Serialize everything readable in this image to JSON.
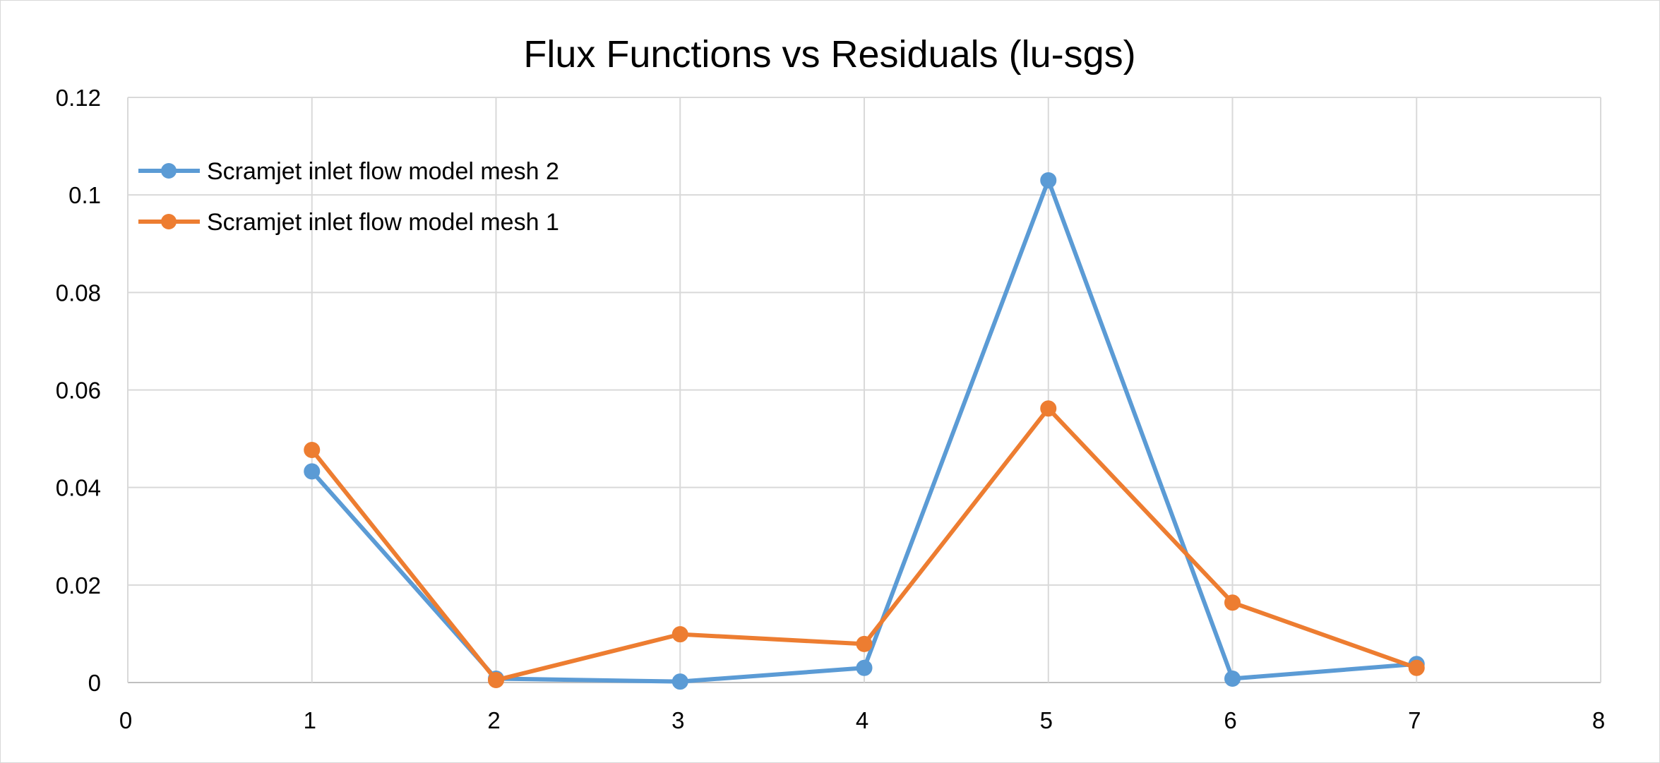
{
  "chart_data": {
    "type": "line",
    "title": "Flux Functions vs Residuals (lu-sgs)",
    "xlabel": "",
    "ylabel": "",
    "xlim": [
      0,
      8
    ],
    "ylim": [
      0,
      0.12
    ],
    "x_ticks": [
      "0",
      "1",
      "2",
      "3",
      "4",
      "5",
      "6",
      "7",
      "8"
    ],
    "y_ticks": [
      "0",
      "0.02",
      "0.04",
      "0.06",
      "0.08",
      "0.1",
      "0.12"
    ],
    "grid": true,
    "legend_position": "top-left",
    "series": [
      {
        "name": "Scramjet inlet flow model mesh 2",
        "color": "#5B9BD5",
        "x": [
          1,
          2,
          3,
          4,
          5,
          6,
          7
        ],
        "y": [
          0.0433,
          0.0008,
          0.0002,
          0.003,
          0.103,
          0.0008,
          0.0038
        ]
      },
      {
        "name": "Scramjet inlet flow model mesh 1",
        "color": "#ED7D31",
        "x": [
          1,
          2,
          3,
          4,
          5,
          6,
          7
        ],
        "y": [
          0.0477,
          0.0005,
          0.0099,
          0.0079,
          0.0562,
          0.0164,
          0.003
        ]
      }
    ]
  }
}
